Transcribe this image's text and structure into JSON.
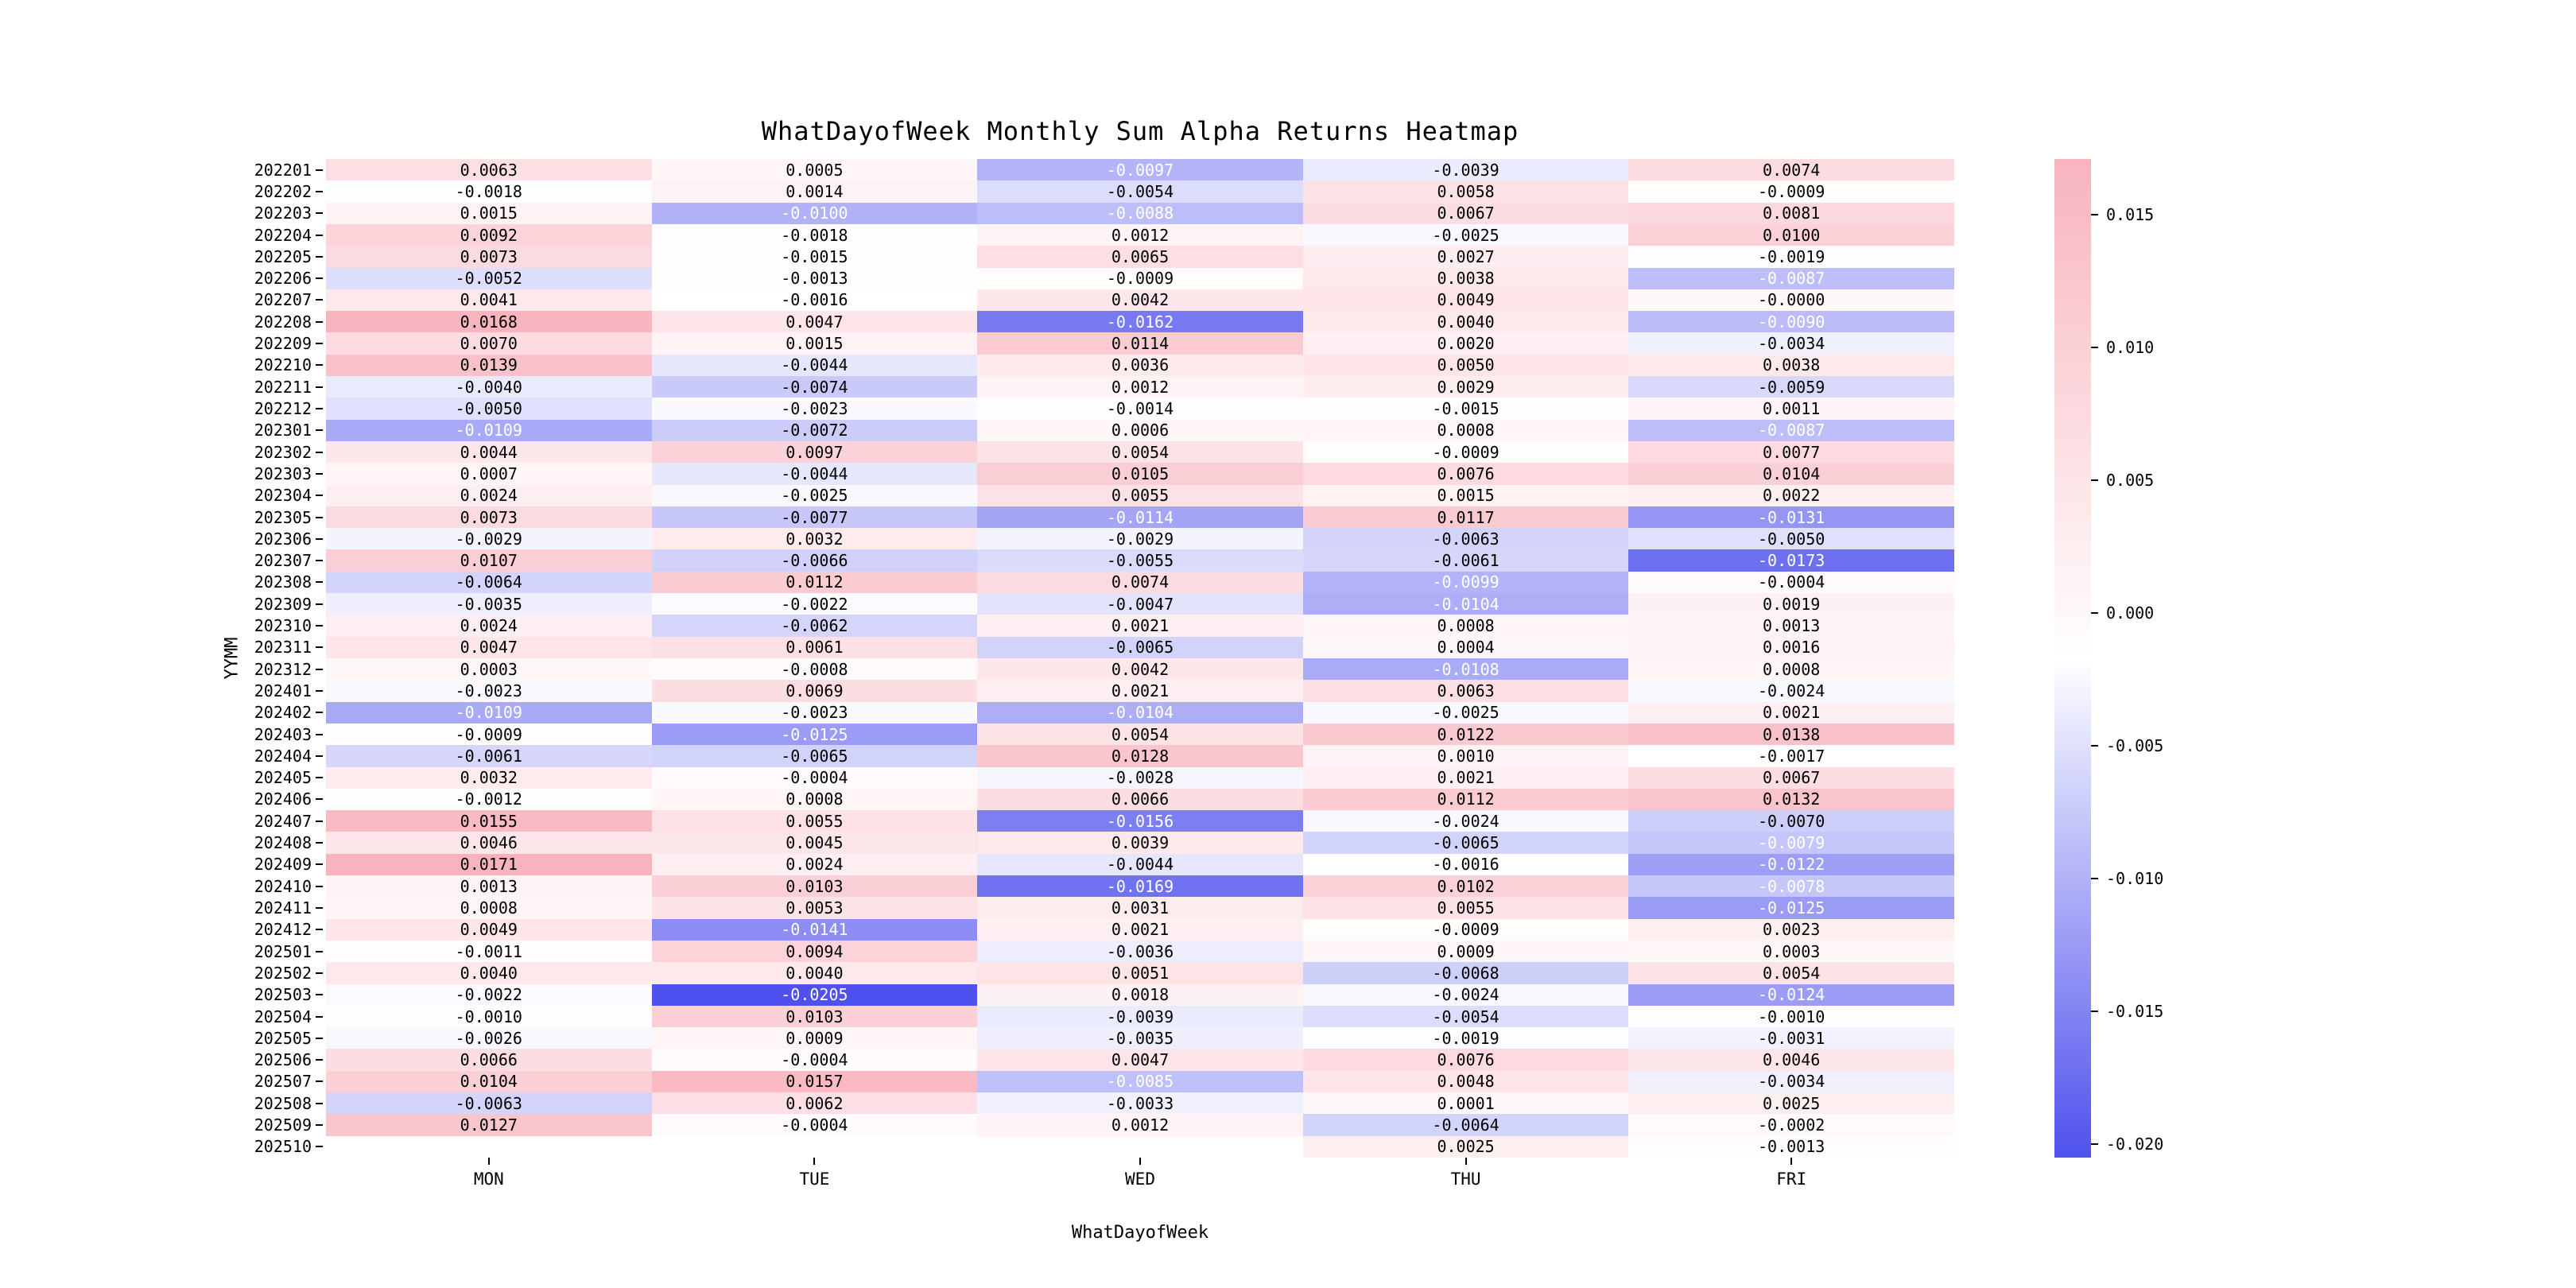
{
  "page": {
    "background": "#ffffff"
  },
  "chart_data": {
    "type": "heatmap",
    "title": "WhatDayofWeek Monthly Sum Alpha Returns Heatmap",
    "xlabel": "WhatDayofWeek",
    "ylabel": "YYMM",
    "columns": [
      "MON",
      "TUE",
      "WED",
      "THU",
      "FRI"
    ],
    "rows": [
      {
        "label": "202201",
        "values": [
          "0.0063",
          "0.0005",
          "-0.0097",
          "-0.0039",
          "0.0074"
        ]
      },
      {
        "label": "202202",
        "values": [
          "-0.0018",
          "0.0014",
          "-0.0054",
          "0.0058",
          "-0.0009"
        ]
      },
      {
        "label": "202203",
        "values": [
          "0.0015",
          "-0.0100",
          "-0.0088",
          "0.0067",
          "0.0081"
        ]
      },
      {
        "label": "202204",
        "values": [
          "0.0092",
          "-0.0018",
          "0.0012",
          "-0.0025",
          "0.0100"
        ]
      },
      {
        "label": "202205",
        "values": [
          "0.0073",
          "-0.0015",
          "0.0065",
          "0.0027",
          "-0.0019"
        ]
      },
      {
        "label": "202206",
        "values": [
          "-0.0052",
          "-0.0013",
          "-0.0009",
          "0.0038",
          "-0.0087"
        ]
      },
      {
        "label": "202207",
        "values": [
          "0.0041",
          "-0.0016",
          "0.0042",
          "0.0049",
          "-0.0000"
        ]
      },
      {
        "label": "202208",
        "values": [
          "0.0168",
          "0.0047",
          "-0.0162",
          "0.0040",
          "-0.0090"
        ]
      },
      {
        "label": "202209",
        "values": [
          "0.0070",
          "0.0015",
          "0.0114",
          "0.0020",
          "-0.0034"
        ]
      },
      {
        "label": "202210",
        "values": [
          "0.0139",
          "-0.0044",
          "0.0036",
          "0.0050",
          "0.0038"
        ]
      },
      {
        "label": "202211",
        "values": [
          "-0.0040",
          "-0.0074",
          "0.0012",
          "0.0029",
          "-0.0059"
        ]
      },
      {
        "label": "202212",
        "values": [
          "-0.0050",
          "-0.0023",
          "-0.0014",
          "-0.0015",
          "0.0011"
        ]
      },
      {
        "label": "202301",
        "values": [
          "-0.0109",
          "-0.0072",
          "0.0006",
          "0.0008",
          "-0.0087"
        ]
      },
      {
        "label": "202302",
        "values": [
          "0.0044",
          "0.0097",
          "0.0054",
          "-0.0009",
          "0.0077"
        ]
      },
      {
        "label": "202303",
        "values": [
          "0.0007",
          "-0.0044",
          "0.0105",
          "0.0076",
          "0.0104"
        ]
      },
      {
        "label": "202304",
        "values": [
          "0.0024",
          "-0.0025",
          "0.0055",
          "0.0015",
          "0.0022"
        ]
      },
      {
        "label": "202305",
        "values": [
          "0.0073",
          "-0.0077",
          "-0.0114",
          "0.0117",
          "-0.0131"
        ]
      },
      {
        "label": "202306",
        "values": [
          "-0.0029",
          "0.0032",
          "-0.0029",
          "-0.0063",
          "-0.0050"
        ]
      },
      {
        "label": "202307",
        "values": [
          "0.0107",
          "-0.0066",
          "-0.0055",
          "-0.0061",
          "-0.0173"
        ]
      },
      {
        "label": "202308",
        "values": [
          "-0.0064",
          "0.0112",
          "0.0074",
          "-0.0099",
          "-0.0004"
        ]
      },
      {
        "label": "202309",
        "values": [
          "-0.0035",
          "-0.0022",
          "-0.0047",
          "-0.0104",
          "0.0019"
        ]
      },
      {
        "label": "202310",
        "values": [
          "0.0024",
          "-0.0062",
          "0.0021",
          "0.0008",
          "0.0013"
        ]
      },
      {
        "label": "202311",
        "values": [
          "0.0047",
          "0.0061",
          "-0.0065",
          "0.0004",
          "0.0016"
        ]
      },
      {
        "label": "202312",
        "values": [
          "0.0003",
          "-0.0008",
          "0.0042",
          "-0.0108",
          "0.0008"
        ]
      },
      {
        "label": "202401",
        "values": [
          "-0.0023",
          "0.0069",
          "0.0021",
          "0.0063",
          "-0.0024"
        ]
      },
      {
        "label": "202402",
        "values": [
          "-0.0109",
          "-0.0023",
          "-0.0104",
          "-0.0025",
          "0.0021"
        ]
      },
      {
        "label": "202403",
        "values": [
          "-0.0009",
          "-0.0125",
          "0.0054",
          "0.0122",
          "0.0138"
        ]
      },
      {
        "label": "202404",
        "values": [
          "-0.0061",
          "-0.0065",
          "0.0128",
          "0.0010",
          "-0.0017"
        ]
      },
      {
        "label": "202405",
        "values": [
          "0.0032",
          "-0.0004",
          "-0.0028",
          "0.0021",
          "0.0067"
        ]
      },
      {
        "label": "202406",
        "values": [
          "-0.0012",
          "0.0008",
          "0.0066",
          "0.0112",
          "0.0132"
        ]
      },
      {
        "label": "202407",
        "values": [
          "0.0155",
          "0.0055",
          "-0.0156",
          "-0.0024",
          "-0.0070"
        ]
      },
      {
        "label": "202408",
        "values": [
          "0.0046",
          "0.0045",
          "0.0039",
          "-0.0065",
          "-0.0079"
        ]
      },
      {
        "label": "202409",
        "values": [
          "0.0171",
          "0.0024",
          "-0.0044",
          "-0.0016",
          "-0.0122"
        ]
      },
      {
        "label": "202410",
        "values": [
          "0.0013",
          "0.0103",
          "-0.0169",
          "0.0102",
          "-0.0078"
        ]
      },
      {
        "label": "202411",
        "values": [
          "0.0008",
          "0.0053",
          "0.0031",
          "0.0055",
          "-0.0125"
        ]
      },
      {
        "label": "202412",
        "values": [
          "0.0049",
          "-0.0141",
          "0.0021",
          "-0.0009",
          "0.0023"
        ]
      },
      {
        "label": "202501",
        "values": [
          "-0.0011",
          "0.0094",
          "-0.0036",
          "0.0009",
          "0.0003"
        ]
      },
      {
        "label": "202502",
        "values": [
          "0.0040",
          "0.0040",
          "0.0051",
          "-0.0068",
          "0.0054"
        ]
      },
      {
        "label": "202503",
        "values": [
          "-0.0022",
          "-0.0205",
          "0.0018",
          "-0.0024",
          "-0.0124"
        ]
      },
      {
        "label": "202504",
        "values": [
          "-0.0010",
          "0.0103",
          "-0.0039",
          "-0.0054",
          "-0.0010"
        ]
      },
      {
        "label": "202505",
        "values": [
          "-0.0026",
          "0.0009",
          "-0.0035",
          "-0.0019",
          "-0.0031"
        ]
      },
      {
        "label": "202506",
        "values": [
          "0.0066",
          "-0.0004",
          "0.0047",
          "0.0076",
          "0.0046"
        ]
      },
      {
        "label": "202507",
        "values": [
          "0.0104",
          "0.0157",
          "-0.0085",
          "0.0048",
          "-0.0034"
        ]
      },
      {
        "label": "202508",
        "values": [
          "-0.0063",
          "0.0062",
          "-0.0033",
          "0.0001",
          "0.0025"
        ]
      },
      {
        "label": "202509",
        "values": [
          "0.0127",
          "-0.0004",
          "0.0012",
          "-0.0064",
          "-0.0002"
        ]
      },
      {
        "label": "202510",
        "values": [
          null,
          null,
          null,
          "0.0025",
          "-0.0013"
        ]
      }
    ],
    "vmin": -0.0205,
    "vmax": 0.0171,
    "colormap": {
      "negative": "#4f51ee",
      "mid": "#ffffff",
      "positive": "#f8b4be"
    },
    "annotation_colors": {
      "dark": "#000000",
      "light": "#ffffff"
    },
    "white_text_threshold": -0.0078,
    "nan_cell_color": "#ffffff",
    "colorbar_ticks": [
      "0.015",
      "0.010",
      "0.005",
      "0.000",
      "-0.005",
      "-0.010",
      "-0.015",
      "-0.020"
    ],
    "legend_position": "right",
    "grid": false
  }
}
